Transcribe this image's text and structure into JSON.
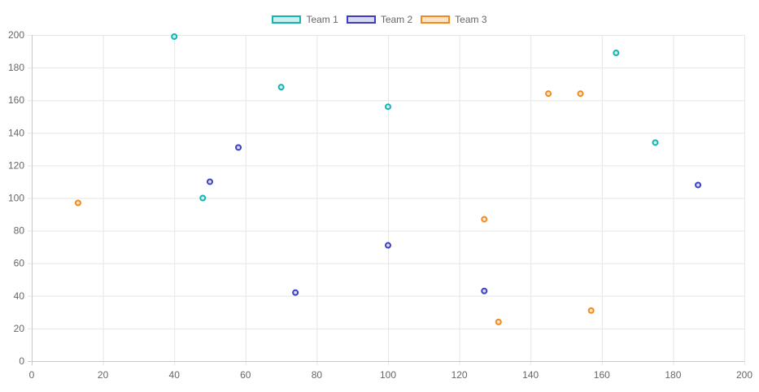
{
  "chart_data": {
    "type": "scatter",
    "title": "",
    "xlabel": "",
    "ylabel": "",
    "xlim": [
      0,
      200
    ],
    "ylim": [
      0,
      200
    ],
    "x_ticks": [
      0,
      20,
      40,
      60,
      80,
      100,
      120,
      140,
      160,
      180,
      200
    ],
    "y_ticks": [
      0,
      20,
      40,
      60,
      80,
      100,
      120,
      140,
      160,
      180,
      200
    ],
    "grid": true,
    "legend_position": "top-center",
    "series": [
      {
        "name": "Team 1",
        "color": "#17b3b0",
        "fill": "#c9efee",
        "points": [
          {
            "x": 40,
            "y": 199
          },
          {
            "x": 70,
            "y": 168
          },
          {
            "x": 100,
            "y": 156
          },
          {
            "x": 164,
            "y": 189
          },
          {
            "x": 175,
            "y": 134
          },
          {
            "x": 48,
            "y": 100
          }
        ]
      },
      {
        "name": "Team 2",
        "color": "#3d3fbe",
        "fill": "#d8d8f3",
        "points": [
          {
            "x": 58,
            "y": 131
          },
          {
            "x": 50,
            "y": 110
          },
          {
            "x": 74,
            "y": 42
          },
          {
            "x": 100,
            "y": 71
          },
          {
            "x": 127,
            "y": 43
          },
          {
            "x": 187,
            "y": 108
          }
        ]
      },
      {
        "name": "Team 3",
        "color": "#f28a1e",
        "fill": "#fde3c8",
        "points": [
          {
            "x": 13,
            "y": 97
          },
          {
            "x": 127,
            "y": 87
          },
          {
            "x": 131,
            "y": 24
          },
          {
            "x": 145,
            "y": 164
          },
          {
            "x": 154,
            "y": 164
          },
          {
            "x": 157,
            "y": 31
          }
        ]
      }
    ]
  }
}
